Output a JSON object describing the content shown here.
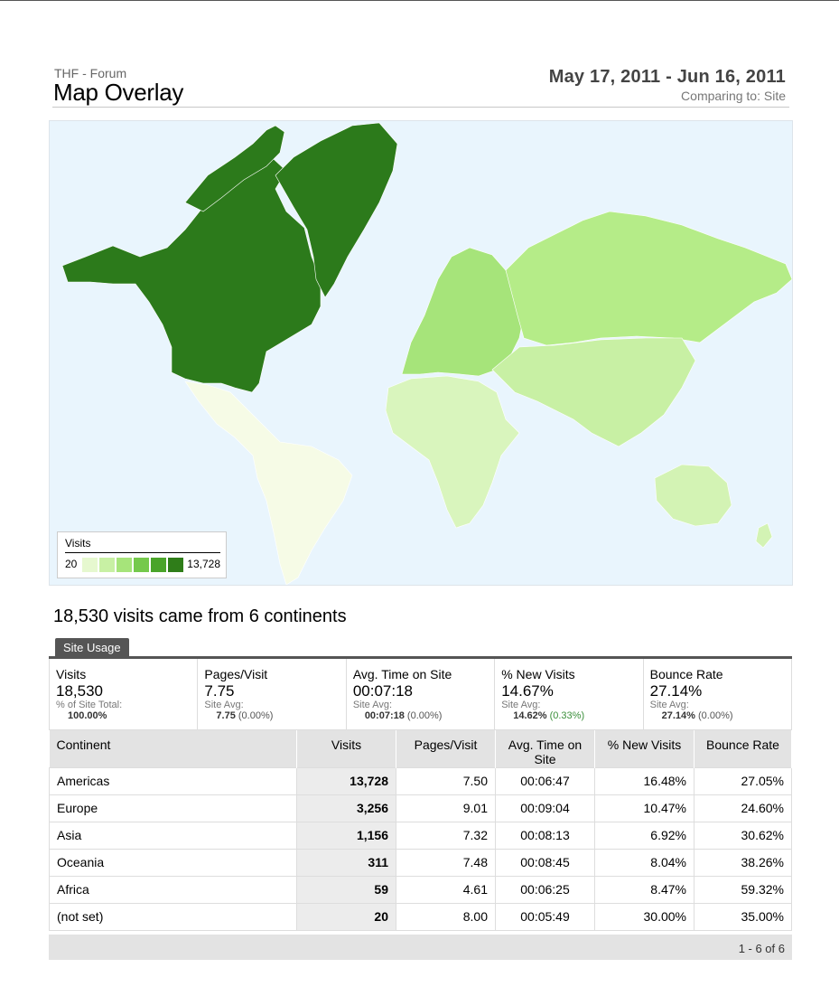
{
  "report": {
    "site_name": "THF - Forum",
    "title": "Map Overlay",
    "date_range": "May 17, 2011 - Jun 16, 2011",
    "comparing": "Comparing to: Site"
  },
  "map": {
    "legend": {
      "title": "Visits",
      "min": "20",
      "max": "13,728",
      "swatch_colors": [
        "#e6f8cf",
        "#c8f0a4",
        "#a6e47a",
        "#75c94c",
        "#4aa42a",
        "#2f7d19"
      ]
    },
    "region_colors": {
      "ocean": "#e9f5fd",
      "north_america": "#2c7a1b",
      "central_south_america": "#f6fbe6",
      "europe": "#a6e47a",
      "russia_asia": "#b5ec88",
      "asia": "#c8f0a4",
      "africa": "#d9f5bd",
      "oceania": "#d3f3b4"
    }
  },
  "summary_heading": "18,530 visits came from 6 continents",
  "tab_label": "Site Usage",
  "metrics": [
    {
      "label": "Visits",
      "value": "18,530",
      "sub": "% of Site Total:",
      "subval": "100.00%",
      "delta": ""
    },
    {
      "label": "Pages/Visit",
      "value": "7.75",
      "sub": "Site Avg:",
      "subval": "7.75",
      "delta": "(0.00%)"
    },
    {
      "label": "Avg. Time on Site",
      "value": "00:07:18",
      "sub": "Site Avg:",
      "subval": "00:07:18",
      "delta": "(0.00%)"
    },
    {
      "label": "% New Visits",
      "value": "14.67%",
      "sub": "Site Avg:",
      "subval": "14.62%",
      "delta": "(0.33%)"
    },
    {
      "label": "Bounce Rate",
      "value": "27.14%",
      "sub": "Site Avg:",
      "subval": "27.14%",
      "delta": "(0.00%)"
    }
  ],
  "table": {
    "headers": [
      "Continent",
      "Visits",
      "Pages/Visit",
      "Avg. Time on Site",
      "% New Visits",
      "Bounce Rate"
    ],
    "rows": [
      [
        "Americas",
        "13,728",
        "7.50",
        "00:06:47",
        "16.48%",
        "27.05%"
      ],
      [
        "Europe",
        "3,256",
        "9.01",
        "00:09:04",
        "10.47%",
        "24.60%"
      ],
      [
        "Asia",
        "1,156",
        "7.32",
        "00:08:13",
        "6.92%",
        "30.62%"
      ],
      [
        "Oceania",
        "311",
        "7.48",
        "00:08:45",
        "8.04%",
        "38.26%"
      ],
      [
        "Africa",
        "59",
        "4.61",
        "00:06:25",
        "8.47%",
        "59.32%"
      ],
      [
        "(not set)",
        "20",
        "8.00",
        "00:05:49",
        "30.00%",
        "35.00%"
      ]
    ],
    "pager": "1 - 6 of 6"
  }
}
